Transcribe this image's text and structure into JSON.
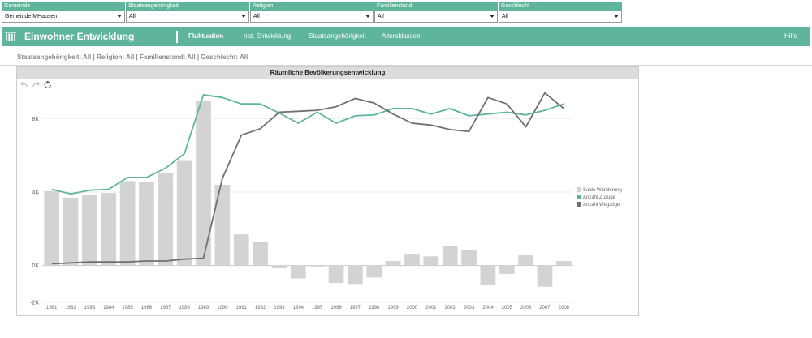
{
  "filters": [
    {
      "label": "Gemeinde",
      "value": "Gemeinde MHausen"
    },
    {
      "label": "Staatsangehörigkeit",
      "value": "All"
    },
    {
      "label": "Religion",
      "value": "All"
    },
    {
      "label": "Familienstand",
      "value": "All"
    },
    {
      "label": "Geschlecht",
      "value": "All"
    }
  ],
  "header": {
    "title": "Einwohner Entwicklung",
    "nav": [
      "Fluktuation",
      "nat. Entwicklung",
      "Staatsangehörigkeit",
      "Altersklassen"
    ],
    "active_index": 0,
    "help": "Hilfe"
  },
  "breadcrumb": "Staatsangehörigkeit: All | Religion: All | Familienstand: All | Geschlecht: All",
  "chart_toolbar": [
    "undo-icon",
    "redo-icon",
    "reset-icon"
  ],
  "colors": {
    "accent": "#5fb59c",
    "saldo": "#d3d3d3",
    "zuzuege": "#5fb59c",
    "wegzuege": "#707070"
  },
  "chart_data": {
    "type": "bar",
    "title": "Räumliche Bevölkerungsentwicklung",
    "categories": [
      "1981",
      "1982",
      "1983",
      "1984",
      "1985",
      "1986",
      "1987",
      "1988",
      "1989",
      "1990",
      "1991",
      "1992",
      "1993",
      "1994",
      "1995",
      "1996",
      "1997",
      "1998",
      "1999",
      "2000",
      "2001",
      "2002",
      "2003",
      "2004",
      "2005",
      "2006",
      "2007",
      "2008"
    ],
    "ylim": [
      -2000,
      10000
    ],
    "yticks": [
      {
        "value": -2000,
        "label": "-2K"
      },
      {
        "value": 0,
        "label": "0K"
      },
      {
        "value": 4000,
        "label": "4K"
      },
      {
        "value": 8000,
        "label": "8K"
      }
    ],
    "series": [
      {
        "name": "Saldo Wanderung",
        "kind": "bar",
        "values": [
          4050,
          3700,
          3850,
          3950,
          4600,
          4550,
          5050,
          5700,
          8950,
          4400,
          1700,
          1300,
          -150,
          -700,
          -50,
          -950,
          -1000,
          -650,
          250,
          650,
          500,
          1050,
          850,
          -1050,
          -450,
          600,
          -1150,
          250
        ]
      },
      {
        "name": "Anzahl Zuzüge",
        "kind": "line",
        "values": [
          4150,
          3900,
          4100,
          4150,
          4800,
          4800,
          5300,
          6100,
          9300,
          9150,
          8800,
          8800,
          8300,
          7750,
          8350,
          7750,
          8150,
          8200,
          8550,
          8550,
          8250,
          8550,
          8150,
          8250,
          8350,
          8200,
          8450,
          8800
        ]
      },
      {
        "name": "Anzahl Wegzüge",
        "kind": "line",
        "values": [
          100,
          150,
          200,
          200,
          200,
          250,
          250,
          350,
          400,
          4750,
          7100,
          7450,
          8350,
          8400,
          8450,
          8650,
          9100,
          8850,
          8250,
          7750,
          7650,
          7400,
          7300,
          9150,
          8800,
          7550,
          9400,
          8550
        ]
      }
    ],
    "legend_position": "right",
    "grid": true
  }
}
